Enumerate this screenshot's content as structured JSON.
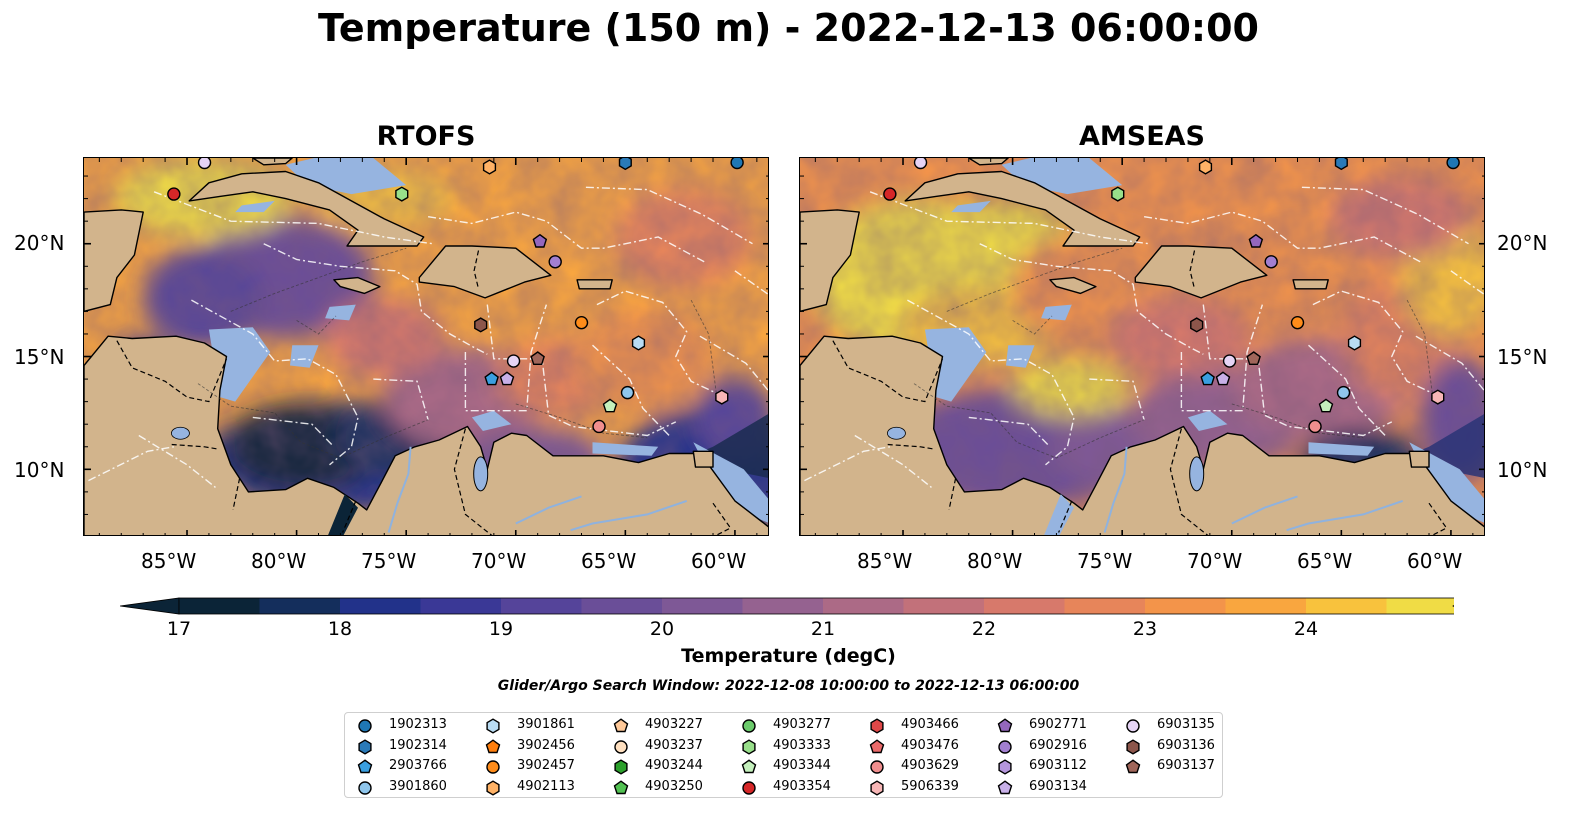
{
  "title": "Temperature (150 m) - 2022-12-13 06:00:00",
  "maps": [
    {
      "title": "RTOFS",
      "variant": "rtofs"
    },
    {
      "title": "AMSEAS",
      "variant": "amseas"
    }
  ],
  "lat_labels": [
    "20°N",
    "15°N",
    "10°N"
  ],
  "lon_labels": [
    "85°W",
    "80°W",
    "75°W",
    "70°W",
    "65°W",
    "60°W"
  ],
  "colorbar": {
    "ticks": [
      "17",
      "18",
      "19",
      "20",
      "21",
      "22",
      "23",
      "24"
    ],
    "label": "Temperature (degC)",
    "colors": [
      "#0b2437",
      "#142e5c",
      "#22328a",
      "#3a3896",
      "#55449a",
      "#6a4e98",
      "#7e5896",
      "#956290",
      "#ac6a86",
      "#c2717a",
      "#d7796b",
      "#e7855a",
      "#f3944a",
      "#f9a63f",
      "#f8c23d",
      "#f0dc45"
    ]
  },
  "search_window": "Glider/Argo Search Window: 2022-12-08 10:00:00 to 2022-12-13 06:00:00",
  "colors": {
    "land": "#d2b48c",
    "shelf": "#96b4e0",
    "deep_ocean_low": "#0b2437"
  },
  "legend": [
    {
      "id": "1902313",
      "shape": "circle",
      "color": "#1f77b4"
    },
    {
      "id": "1902314",
      "shape": "hexagon",
      "color": "#2a7ab8"
    },
    {
      "id": "2903766",
      "shape": "pentagon",
      "color": "#3a9fe0"
    },
    {
      "id": "3901860",
      "shape": "circle",
      "color": "#8fc6ec"
    },
    {
      "id": "3901861",
      "shape": "hexagon",
      "color": "#b9dcf3"
    },
    {
      "id": "3902456",
      "shape": "pentagon",
      "color": "#ff7f0e"
    },
    {
      "id": "3902457",
      "shape": "circle",
      "color": "#ff8c1a"
    },
    {
      "id": "4902113",
      "shape": "hexagon",
      "color": "#ffb266"
    },
    {
      "id": "4903227",
      "shape": "pentagon",
      "color": "#ffc999"
    },
    {
      "id": "4903237",
      "shape": "circle",
      "color": "#ffe0c0"
    },
    {
      "id": "4903244",
      "shape": "hexagon",
      "color": "#2ca02c"
    },
    {
      "id": "4903250",
      "shape": "pentagon",
      "color": "#52c152"
    },
    {
      "id": "4903277",
      "shape": "circle",
      "color": "#6ccb6c"
    },
    {
      "id": "4903333",
      "shape": "hexagon",
      "color": "#98df8a"
    },
    {
      "id": "4903344",
      "shape": "pentagon",
      "color": "#c4f0bc"
    },
    {
      "id": "4903354",
      "shape": "circle",
      "color": "#d62728"
    },
    {
      "id": "4903466",
      "shape": "hexagon",
      "color": "#e04848"
    },
    {
      "id": "4903476",
      "shape": "pentagon",
      "color": "#ea6a6a"
    },
    {
      "id": "4903629",
      "shape": "circle",
      "color": "#f08e8e"
    },
    {
      "id": "5906339",
      "shape": "hexagon",
      "color": "#f7b6b6"
    },
    {
      "id": "6902771",
      "shape": "pentagon",
      "color": "#9467bd"
    },
    {
      "id": "6902916",
      "shape": "circle",
      "color": "#a27fd0"
    },
    {
      "id": "6903112",
      "shape": "hexagon",
      "color": "#b596dc"
    },
    {
      "id": "6903134",
      "shape": "pentagon",
      "color": "#c8b0e8"
    },
    {
      "id": "6903135",
      "shape": "circle",
      "color": "#e6d4f5"
    },
    {
      "id": "6903136",
      "shape": "hexagon",
      "color": "#8c564b"
    },
    {
      "id": "6903137",
      "shape": "pentagon",
      "color": "#a0665a"
    }
  ],
  "floats": [
    {
      "id": "6903135",
      "lon": -84.2,
      "lat": 23.6
    },
    {
      "id": "4903354",
      "lon": -85.6,
      "lat": 22.2
    },
    {
      "id": "4903333",
      "lon": -75.2,
      "lat": 22.2
    },
    {
      "id": "4902113",
      "lon": -71.2,
      "lat": 23.4
    },
    {
      "id": "1902314",
      "lon": -65.0,
      "lat": 23.6
    },
    {
      "id": "1902313",
      "lon": -59.9,
      "lat": 23.6
    },
    {
      "id": "6902771",
      "lon": -68.9,
      "lat": 20.1
    },
    {
      "id": "6902916",
      "lon": -68.2,
      "lat": 19.2
    },
    {
      "id": "6903136",
      "lon": -71.6,
      "lat": 16.4
    },
    {
      "id": "3902457",
      "lon": -67.0,
      "lat": 16.5
    },
    {
      "id": "3901861",
      "lon": -64.4,
      "lat": 15.6
    },
    {
      "id": "6903135",
      "lon": -70.1,
      "lat": 14.8
    },
    {
      "id": "6903137",
      "lon": -69.0,
      "lat": 14.9
    },
    {
      "id": "2903766",
      "lon": -71.1,
      "lat": 14.0
    },
    {
      "id": "6903134",
      "lon": -70.4,
      "lat": 14.0
    },
    {
      "id": "3901860",
      "lon": -64.9,
      "lat": 13.4
    },
    {
      "id": "4903344",
      "lon": -65.7,
      "lat": 12.8
    },
    {
      "id": "4903629",
      "lon": -66.2,
      "lat": 11.9
    },
    {
      "id": "5906339",
      "lon": -60.6,
      "lat": 13.2
    }
  ]
}
